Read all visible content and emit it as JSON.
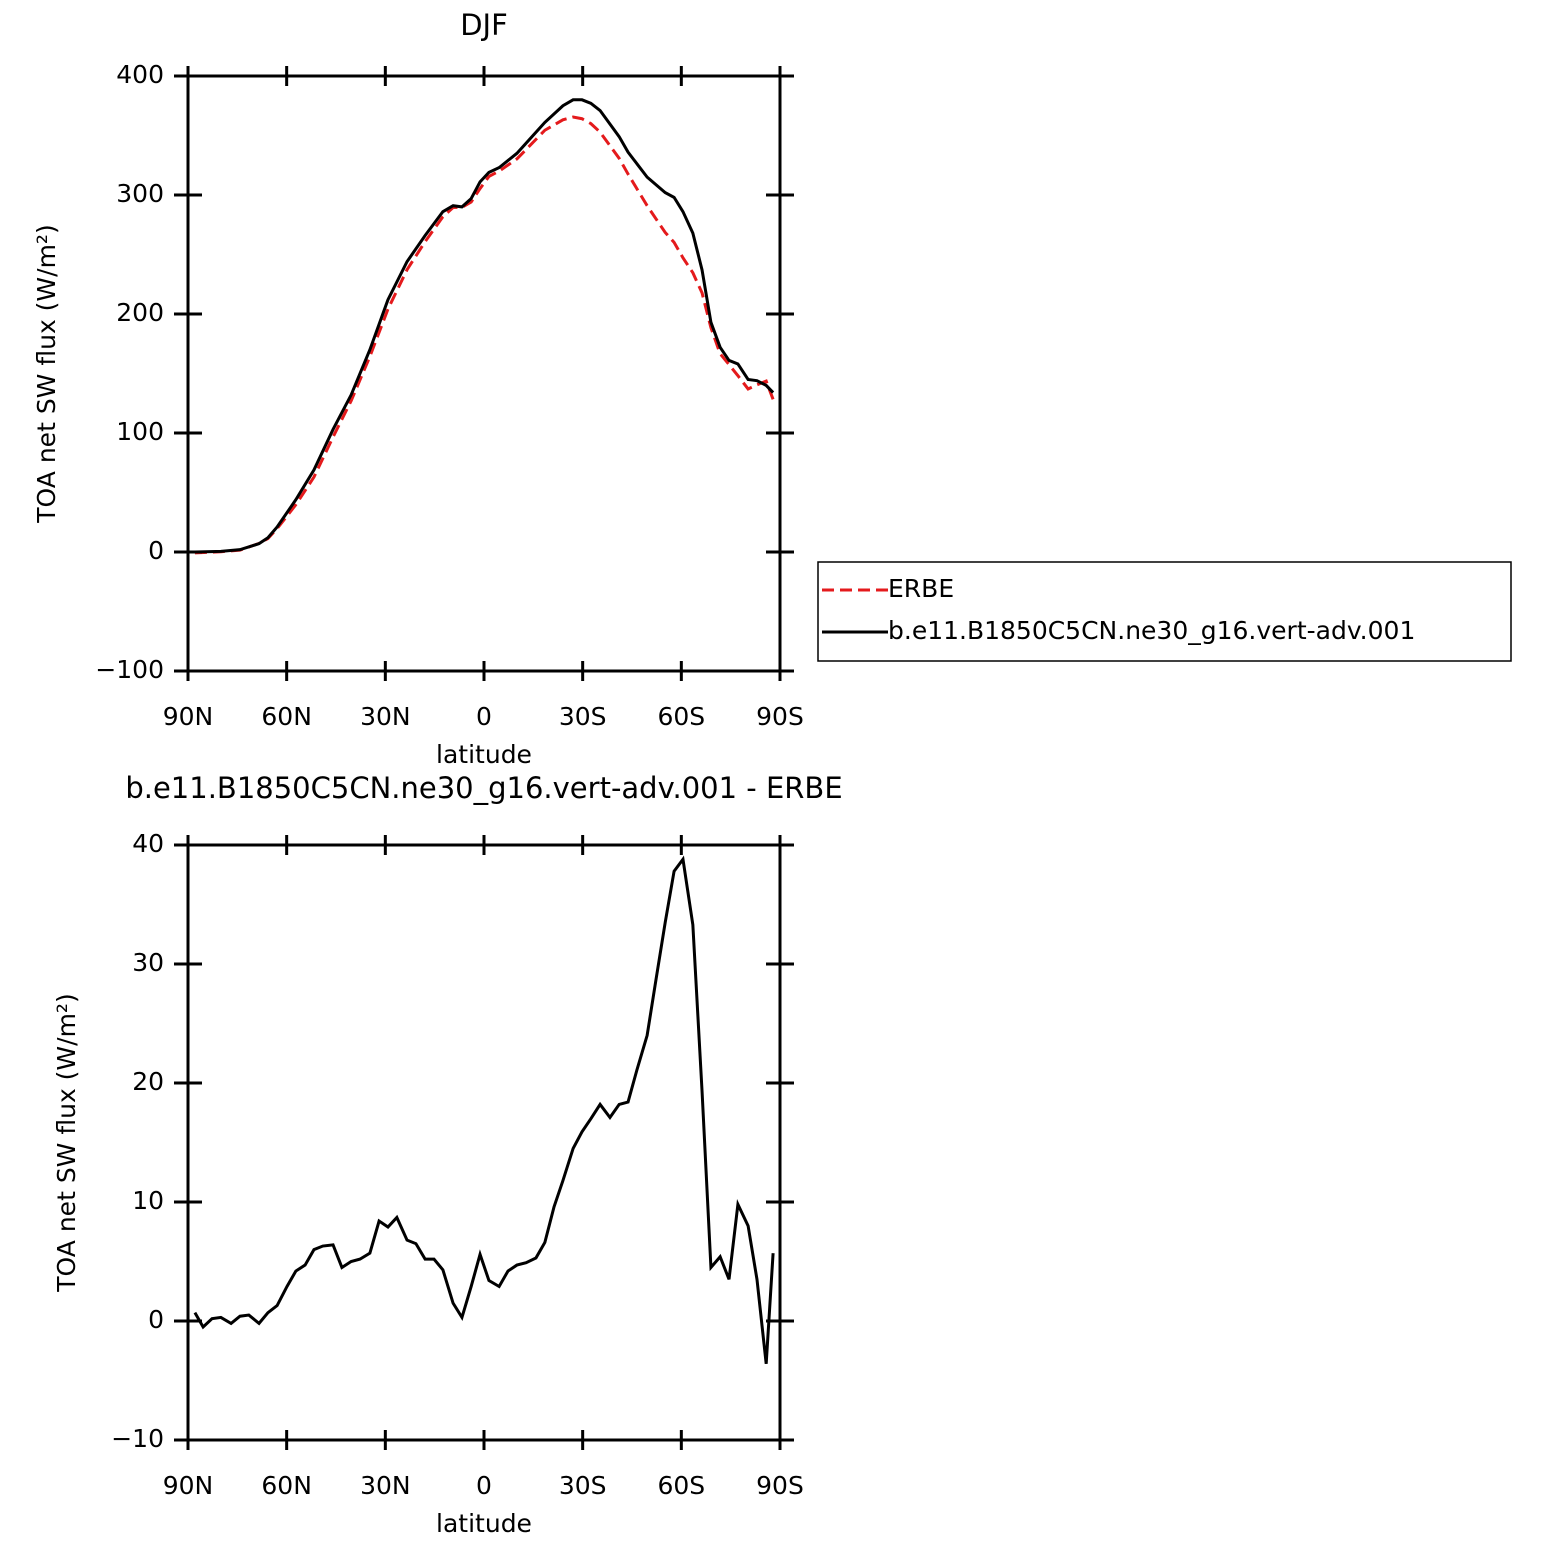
{
  "chart_data": [
    {
      "type": "line",
      "title": "DJF",
      "xlabel": "latitude",
      "ylabel": "TOA net SW flux (W/m²)",
      "x": [
        87.9,
        80,
        74.2,
        68.4,
        65.7,
        62.9,
        57.2,
        51.7,
        45.9,
        40.4,
        34.7,
        29.2,
        23.4,
        17.9,
        12.5,
        9.4,
        6.7,
        3.9,
        1.2,
        -1.5,
        -4.6,
        -10,
        -18.5,
        -24,
        -27.1,
        -29.8,
        -32.5,
        -35.3,
        -41.1,
        -43.8,
        -49.6,
        -55.1,
        -57.8,
        -60.5,
        -63.5,
        -66.3,
        -69,
        -71.8,
        -74.5,
        -77.2,
        -80.3,
        -83,
        -85.8,
        -87.9
      ],
      "series": [
        {
          "name": "ERBE",
          "color": "#e41a1c",
          "dash": true,
          "values": [
            -0.7,
            0.2,
            1.6,
            7.2,
            11.3,
            19.7,
            39.8,
            63,
            96.6,
            127,
            164.3,
            204.1,
            237.2,
            260.8,
            281.7,
            289.5,
            289.7,
            294.1,
            305.4,
            315.6,
            320.1,
            330.3,
            354.4,
            363.2,
            365.5,
            364.1,
            360,
            352.8,
            330.8,
            317.6,
            291,
            268.5,
            260.2,
            247.2,
            234.7,
            217.7,
            188.5,
            166.6,
            157.5,
            148.2,
            137,
            140.5,
            143.6,
            128.3
          ]
        },
        {
          "name": "b.e11.B1850C5CN.ne30_g16.vert-adv.001",
          "color": "#000000",
          "dash": false,
          "values": [
            0,
            0.5,
            2,
            7,
            12,
            21,
            44,
            69,
            103,
            132,
            170,
            212,
            244,
            266,
            286,
            291,
            290,
            297,
            311,
            319,
            323,
            335,
            361,
            375,
            380,
            380,
            377,
            371,
            349,
            336,
            315,
            302,
            298,
            286,
            268,
            237,
            193,
            172,
            161,
            158,
            145,
            144,
            140,
            134
          ]
        }
      ],
      "xlim": [
        90,
        -90
      ],
      "xticks": [
        {
          "value": 90,
          "label": "90N"
        },
        {
          "value": 60,
          "label": "60N"
        },
        {
          "value": 30,
          "label": "30N"
        },
        0,
        {
          "value": -30,
          "label": "30S"
        },
        {
          "value": -60,
          "label": "60S"
        },
        {
          "value": -90,
          "label": "90S"
        }
      ],
      "ylim": [
        -100,
        400
      ],
      "yticks": [
        {
          "value": -100,
          "label": "−100"
        },
        0,
        100,
        200,
        300,
        400
      ],
      "legend": "right"
    },
    {
      "type": "line",
      "title": "b.e11.B1850C5CN.ne30_g16.vert-adv.001 - ERBE",
      "xlabel": "latitude",
      "ylabel": "TOA net SW flux (W/m²)",
      "x": [
        87.9,
        85.4,
        82.7,
        80,
        76.9,
        74.2,
        71.5,
        68.4,
        65.7,
        62.9,
        59.9,
        57.2,
        54.4,
        51.7,
        49,
        45.9,
        43.2,
        40.4,
        37.7,
        34.7,
        31.9,
        29.2,
        26.5,
        23.4,
        20.7,
        17.9,
        15.2,
        12.5,
        9.4,
        6.7,
        3.9,
        1.2,
        -1.5,
        -4.6,
        -7.3,
        -10,
        -12.8,
        -15.8,
        -18.5,
        -21.3,
        -24,
        -27.1,
        -29.8,
        -32.5,
        -35.3,
        -38.3,
        -41.1,
        -43.8,
        -46.5,
        -49.6,
        -52.3,
        -55.1,
        -57.8,
        -60.5,
        -63.5,
        -66.3,
        -69,
        -71.8,
        -74.5,
        -77.2,
        -80.3,
        -83,
        -85.8,
        -87.9
      ],
      "series": [
        {
          "name": "b.e11.B1850C5CN.ne30_g16.vert-adv.001 - ERBE",
          "color": "#000000",
          "dash": false,
          "values": [
            0.7,
            -0.5,
            0.2,
            0.3,
            -0.2,
            0.4,
            0.5,
            -0.2,
            0.7,
            1.3,
            2.9,
            4.2,
            4.7,
            6.0,
            6.3,
            6.4,
            4.5,
            5.0,
            5.2,
            5.7,
            8.4,
            7.9,
            8.7,
            6.8,
            6.5,
            5.2,
            5.2,
            4.3,
            1.5,
            0.3,
            2.9,
            5.6,
            3.4,
            2.9,
            4.2,
            4.7,
            4.9,
            5.3,
            6.6,
            9.6,
            11.8,
            14.5,
            15.9,
            17.0,
            18.2,
            17.1,
            18.2,
            18.4,
            21.1,
            24.0,
            28.7,
            33.5,
            37.8,
            38.8,
            33.3,
            19.3,
            4.5,
            5.4,
            3.5,
            9.8,
            8.0,
            3.5,
            -3.6,
            5.7
          ]
        }
      ],
      "xlim": [
        90,
        -90
      ],
      "xticks": [
        {
          "value": 90,
          "label": "90N"
        },
        {
          "value": 60,
          "label": "60N"
        },
        {
          "value": 30,
          "label": "30N"
        },
        0,
        {
          "value": -30,
          "label": "30S"
        },
        {
          "value": -60,
          "label": "60S"
        },
        {
          "value": -90,
          "label": "90S"
        }
      ],
      "ylim": [
        -10,
        40
      ],
      "yticks": [
        {
          "value": -10,
          "label": "−10"
        },
        0,
        10,
        20,
        30,
        40
      ]
    }
  ]
}
